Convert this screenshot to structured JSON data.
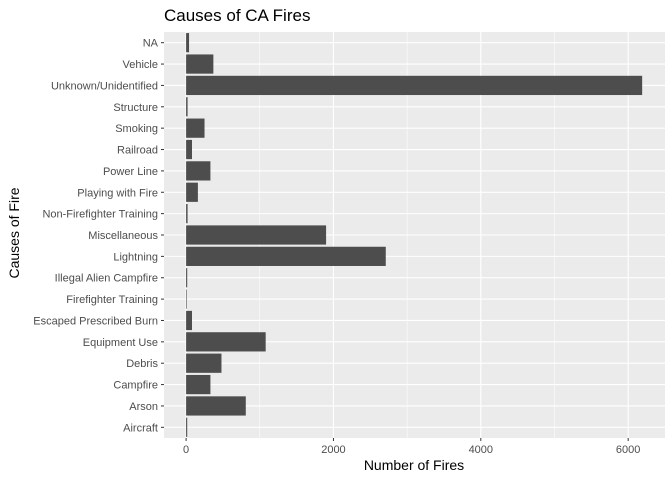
{
  "chart_data": {
    "type": "bar",
    "orientation": "horizontal",
    "title": "Causes of CA Fires",
    "xlabel": "Number of Fires",
    "ylabel": "Causes of Fire",
    "categories": [
      "Aircraft",
      "Arson",
      "Campfire",
      "Debris",
      "Equipment Use",
      "Escaped Prescribed Burn",
      "Firefighter Training",
      "Illegal Alien Campfire",
      "Lightning",
      "Miscellaneous",
      "Non-Firefighter Training",
      "Playing with Fire",
      "Power Line",
      "Railroad",
      "Smoking",
      "Structure",
      "Unknown/Unidentified",
      "Vehicle",
      "NA"
    ],
    "values": [
      15,
      810,
      330,
      480,
      1080,
      80,
      5,
      15,
      2710,
      1900,
      20,
      160,
      330,
      80,
      250,
      20,
      6190,
      370,
      40
    ],
    "xlim": [
      -300,
      6500
    ],
    "xticks": [
      0,
      2000,
      4000,
      6000
    ],
    "xtick_labels": [
      "0",
      "2000",
      "4000",
      "6000"
    ],
    "grid": true,
    "legend": "none",
    "colors": {
      "bar": "#4d4d4d",
      "panel": "#ebebeb",
      "grid_major": "#ffffff",
      "tick_text": "#4d4d4d"
    }
  }
}
